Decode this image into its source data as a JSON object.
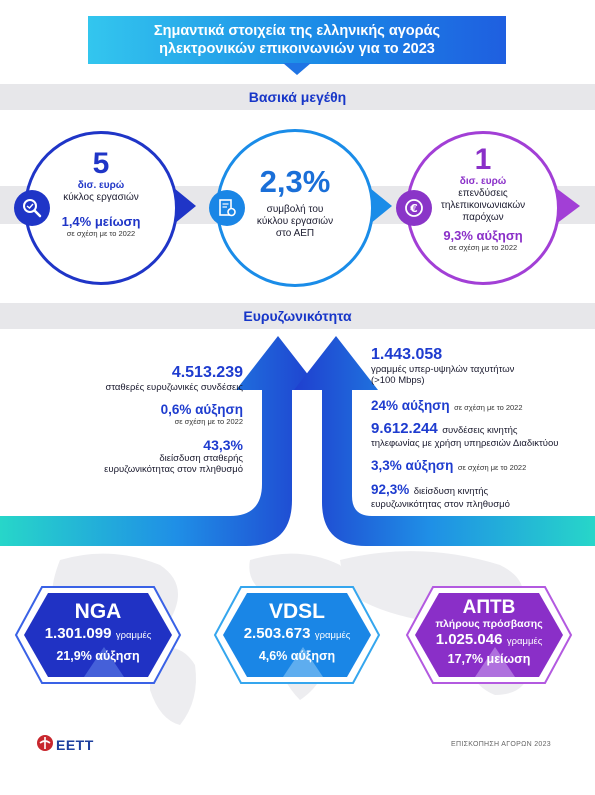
{
  "header": {
    "title_line1": "Σημαντικά στοιχεία της ελληνικής αγοράς",
    "title_line2": "ηλεκτρονικών επικοινωνιών για το 2023"
  },
  "sections": {
    "basic": "Βασικά μεγέθη",
    "broadband": "Ευρυζωνικότητα"
  },
  "key_figures": [
    {
      "value": "5",
      "label_lines": [
        "δισ. ευρώ",
        "κύκλος εργασιών"
      ],
      "change": "1,4% μείωση",
      "note": "σε σχέση με το 2022",
      "icon": "search-icon",
      "color": "#1f35c7"
    },
    {
      "value": "2,3%",
      "label_lines": [
        "συμβολή του",
        "κύκλου εργασιών",
        "στο ΑΕΠ"
      ],
      "icon": "document-gear-icon",
      "color": "#1a86e6"
    },
    {
      "value": "1",
      "label_lines": [
        "δισ. ευρώ",
        "επενδύσεις",
        "τηλεπικοινωνιακών",
        "παρόχων"
      ],
      "change": "9,3% αύξηση",
      "note": "σε σχέση με το 2022",
      "icon": "euro-coin-icon",
      "color": "#8a35c8"
    }
  ],
  "broadband_fixed": {
    "connections_value": "4.513.239",
    "connections_label": "σταθερές ευρυζωνικές συνδέσεις",
    "change": "0,6% αύξηση",
    "change_note": "σε σχέση με το 2022",
    "penetration_value": "43,3%",
    "penetration_label_1": "διείσδυση σταθερής",
    "penetration_label_2": "ευρυζωνικότητας στον πληθυσμό"
  },
  "broadband_mobile": {
    "ultrafast_value": "1.443.058",
    "ultrafast_label_1": "γραμμές υπερ-υψηλών ταχυτήτων",
    "ultrafast_label_2": "(>100 Mbps)",
    "ultrafast_change": "24% αύξηση",
    "ultrafast_note": "σε σχέση με το 2022",
    "mobile_value": "9.612.244",
    "mobile_label_1": "συνδέσεις κινητής",
    "mobile_label_2": "τηλεφωνίας με χρήση υπηρεσιών Διαδικτύου",
    "mobile_change": "3,3% αύξηση",
    "mobile_note": "σε σχέση με το 2022",
    "mobile_pen_value": "92,3%",
    "mobile_pen_label_1": "διείσδυση κινητής",
    "mobile_pen_label_2": "ευρυζωνικότητας στον πληθυσμό"
  },
  "access_cards": [
    {
      "title": "NGA",
      "value": "1.301.099",
      "unit": "γραμμές",
      "change": "21,9% αύξηση",
      "color": "#2032c4"
    },
    {
      "title": "VDSL",
      "value": "2.503.673",
      "unit": "γραμμές",
      "change": "4,6% αύξηση",
      "color": "#1a86e6"
    },
    {
      "title": "ΑΠΤΒ",
      "subtitle": "πλήρους πρόσβασης",
      "value": "1.025.046",
      "unit": "γραμμές",
      "change": "17,7% μείωση",
      "color": "#8a2fc8"
    }
  ],
  "footer": {
    "logo_text": "ΕΕΤΤ",
    "label": "ΕΠΙΣΚΟΠΗΣΗ ΑΓΟΡΩΝ 2023"
  }
}
